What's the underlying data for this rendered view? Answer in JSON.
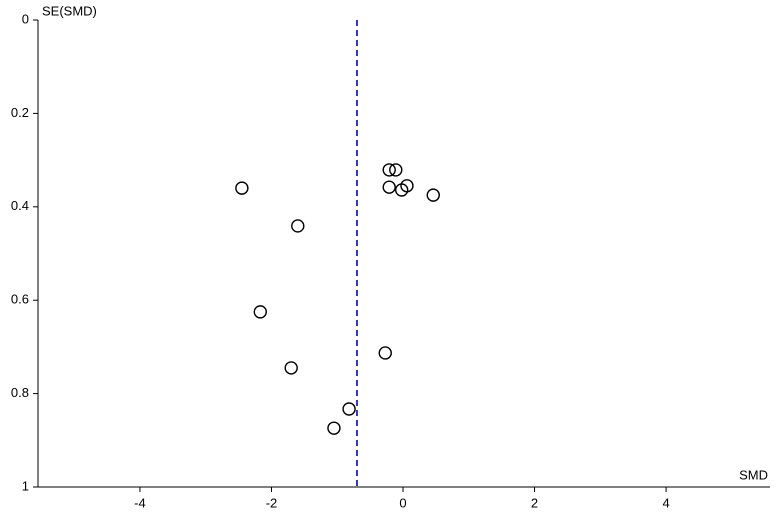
{
  "chart_data": {
    "type": "scatter",
    "x_label": "SMD",
    "y_label": "SE(SMD)",
    "x": [
      -0.21,
      -0.11,
      -0.21,
      -0.02,
      0.06,
      0.46,
      -2.45,
      -1.6,
      -2.17,
      -0.27,
      -1.7,
      -0.82,
      -1.05
    ],
    "values": [
      0.321,
      0.321,
      0.358,
      0.364,
      0.355,
      0.375,
      0.36,
      0.441,
      0.625,
      0.713,
      0.745,
      0.833,
      0.874
    ],
    "color": "#000000",
    "reference_line": {
      "value": -0.7,
      "color": "#3333cc"
    },
    "xlim": [
      -5.55,
      5.58
    ],
    "xticks": [
      -4,
      -2,
      0,
      2,
      4
    ],
    "ylim": [
      0,
      1
    ],
    "yticks": [
      0,
      0.2,
      0.4,
      0.6,
      0.8,
      1
    ],
    "y_inverted": true
  }
}
